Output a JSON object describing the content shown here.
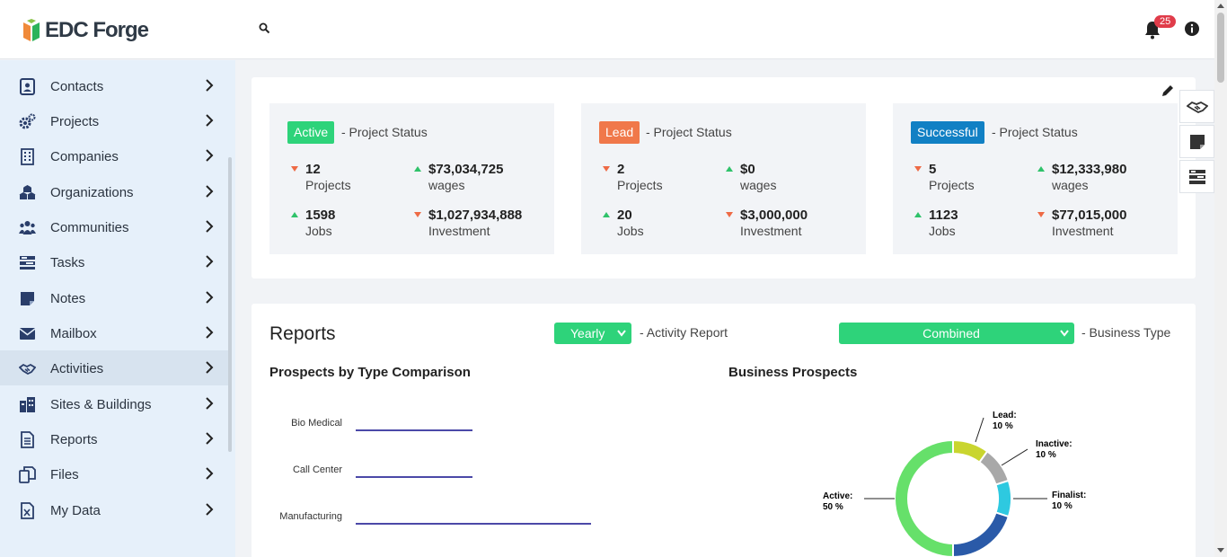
{
  "header": {
    "logo_text": "EDC Forge",
    "notification_count": "25"
  },
  "sidebar": {
    "items": [
      {
        "label": "Contacts",
        "icon": "contact-card-icon"
      },
      {
        "label": "Projects",
        "icon": "gears-icon"
      },
      {
        "label": "Companies",
        "icon": "building-icon"
      },
      {
        "label": "Organizations",
        "icon": "cubes-icon"
      },
      {
        "label": "Communities",
        "icon": "users-icon"
      },
      {
        "label": "Tasks",
        "icon": "tasks-icon"
      },
      {
        "label": "Notes",
        "icon": "note-icon"
      },
      {
        "label": "Mailbox",
        "icon": "envelope-icon"
      },
      {
        "label": "Activities",
        "icon": "handshake-icon"
      },
      {
        "label": "Sites & Buildings",
        "icon": "city-icon"
      },
      {
        "label": "Reports",
        "icon": "report-file-icon"
      },
      {
        "label": "Files",
        "icon": "files-icon"
      },
      {
        "label": "My Data",
        "icon": "excel-file-icon"
      }
    ]
  },
  "status_cards": [
    {
      "status": "Active",
      "color": "#2ed37a",
      "suffix": "- Project Status",
      "projects": "12",
      "projects_label": "Projects",
      "wages": "$73,034,725",
      "wages_label": "wages",
      "jobs": "1598",
      "jobs_label": "Jobs",
      "investment": "$1,027,934,888",
      "investment_label": "Investment"
    },
    {
      "status": "Lead",
      "color": "#f0784a",
      "suffix": "- Project Status",
      "projects": "2",
      "projects_label": "Projects",
      "wages": "$0",
      "wages_label": "wages",
      "jobs": "20",
      "jobs_label": "Jobs",
      "investment": "$3,000,000",
      "investment_label": "Investment"
    },
    {
      "status": "Successful",
      "color": "#1180c4",
      "suffix": "- Project Status",
      "projects": "5",
      "projects_label": "Projects",
      "wages": "$12,333,980",
      "wages_label": "wages",
      "jobs": "1123",
      "jobs_label": "Jobs",
      "investment": "$77,015,000",
      "investment_label": "Investment"
    }
  ],
  "reports": {
    "title": "Reports",
    "period_select": "Yearly",
    "period_label": "- Activity Report",
    "type_select": "Combined",
    "type_label": "- Business Type",
    "bar_chart_title": "Prospects by Type Comparison",
    "donut_chart_title": "Business Prospects"
  },
  "chart_data": [
    {
      "type": "bar",
      "title": "Prospects by Type Comparison",
      "categories": [
        "Bio Medical",
        "Call Center",
        "Manufacturing"
      ],
      "values": [
        1,
        1,
        2
      ]
    },
    {
      "type": "pie",
      "title": "Business Prospects",
      "slices": [
        {
          "label": "Lead:",
          "percent_label": "10 %",
          "value": 10,
          "color": "#c9d52f"
        },
        {
          "label": "Inactive:",
          "percent_label": "10 %",
          "value": 10,
          "color": "#a8a8a8"
        },
        {
          "label": "Finalist:",
          "percent_label": "10 %",
          "value": 10,
          "color": "#2ec9e0"
        },
        {
          "label": "",
          "percent_label": "",
          "value": 20,
          "color": "#2a5aa8"
        },
        {
          "label": "Active:",
          "percent_label": "50 %",
          "value": 50,
          "color": "#66e06a"
        }
      ]
    }
  ]
}
